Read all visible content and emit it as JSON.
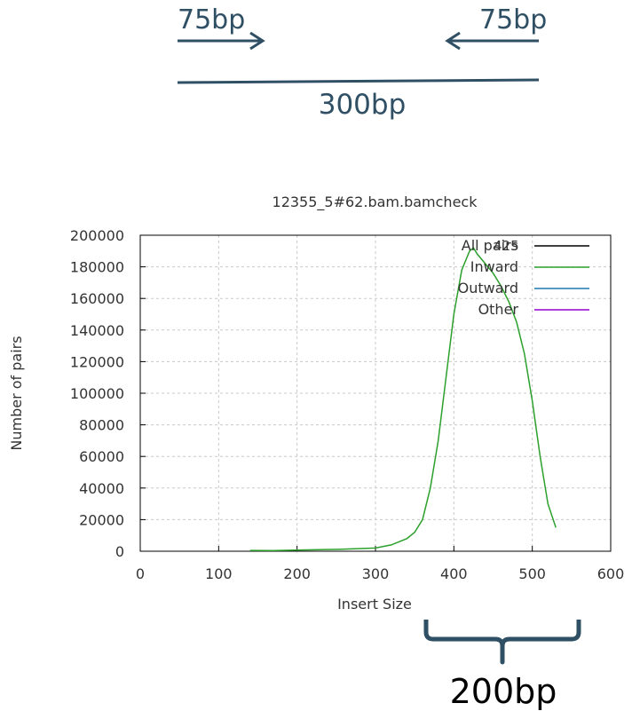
{
  "diagram": {
    "left_read_label": "75bp",
    "right_read_label": "75bp",
    "fragment_label": "300bp",
    "color": "#2f4f64"
  },
  "chart_data": {
    "type": "line",
    "title": "12355_5#62.bam.bamcheck",
    "xlabel": "Insert Size",
    "ylabel": "Number of pairs",
    "xlim": [
      0,
      600
    ],
    "ylim": [
      0,
      200000
    ],
    "xticks": [
      0,
      100,
      200,
      300,
      400,
      500,
      600
    ],
    "yticks": [
      0,
      20000,
      40000,
      60000,
      80000,
      100000,
      120000,
      140000,
      160000,
      180000,
      200000
    ],
    "grid": true,
    "legend_position": "top-right",
    "annotation": "425",
    "series": [
      {
        "name": "All pairs",
        "color": "#000000",
        "x": [],
        "y": []
      },
      {
        "name": "Inward",
        "color": "#2ca02c",
        "x": [
          140,
          170,
          205,
          250,
          300,
          320,
          340,
          350,
          360,
          370,
          380,
          390,
          400,
          410,
          420,
          425,
          430,
          440,
          450,
          460,
          470,
          480,
          490,
          500,
          510,
          520,
          530
        ],
        "y": [
          500,
          400,
          800,
          1200,
          2000,
          4000,
          8000,
          12000,
          20000,
          40000,
          70000,
          110000,
          150000,
          178000,
          190000,
          192000,
          188000,
          182000,
          176000,
          168000,
          158000,
          145000,
          125000,
          95000,
          60000,
          30000,
          15000
        ]
      },
      {
        "name": "Outward",
        "color": "#1f77b4",
        "x": [],
        "y": []
      },
      {
        "name": "Other",
        "color": "#9400d3",
        "x": [],
        "y": []
      }
    ]
  },
  "bracket": {
    "label": "200bp",
    "color": "#2f4f64"
  }
}
